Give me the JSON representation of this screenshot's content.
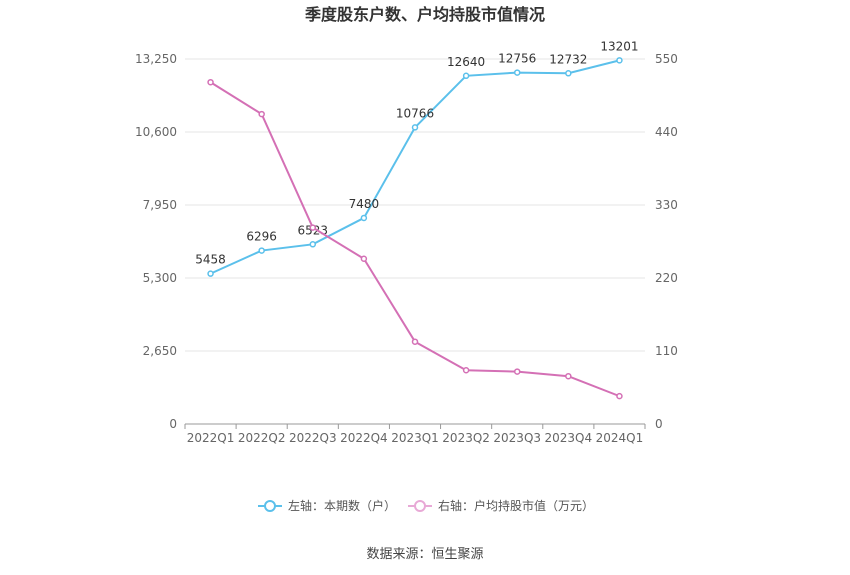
{
  "chart_data": {
    "type": "line",
    "title": "季度股东户数、户均持股市值情况",
    "categories": [
      "2022Q1",
      "2022Q2",
      "2022Q3",
      "2022Q4",
      "2023Q1",
      "2023Q2",
      "2023Q3",
      "2023Q4",
      "2024Q1"
    ],
    "left_axis": {
      "ticks": [
        "0",
        "2,650",
        "5,300",
        "7,950",
        "10,600",
        "13,250"
      ],
      "ylim": [
        0,
        13250
      ]
    },
    "right_axis": {
      "ticks": [
        "0",
        "110",
        "220",
        "330",
        "440",
        "550"
      ],
      "ylim": [
        0,
        550
      ]
    },
    "series": [
      {
        "name": "左轴：本期数（户）",
        "axis": "left",
        "color": "#5bc0eb",
        "values": [
          5458,
          6296,
          6523,
          7480,
          10766,
          12640,
          12756,
          12732,
          13201
        ],
        "labels": [
          "5458",
          "6296",
          "6523",
          "7480",
          "10766",
          "12640",
          "12756",
          "12732",
          "13201"
        ]
      },
      {
        "name": "右轴：户均持股市值（万元）",
        "axis": "right",
        "color": "#d470b5",
        "values": [
          515,
          467,
          296,
          249,
          124,
          81,
          79,
          72,
          42
        ]
      }
    ],
    "grid": true,
    "legend_position": "bottom"
  },
  "footer": {
    "source": "数据来源：恒生聚源"
  }
}
